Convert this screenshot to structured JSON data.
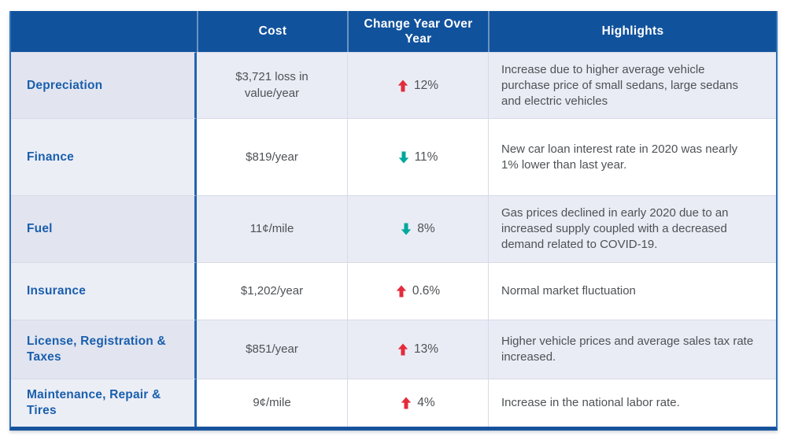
{
  "title": "Vehicle ownership cost comparison table",
  "colors": {
    "header_bg": "#11529c",
    "header_text": "#ffffff",
    "label_text": "#1a5fad",
    "body_text": "#4f5154",
    "up_arrow": "#e32b3c",
    "down_arrow": "#00a79c",
    "stripe": "#e9ecf5",
    "label_stripe_light": "#eceef6",
    "label_stripe_dark": "#e2e5f0",
    "grid_line": "#d7dbe7",
    "divider_blue": "#2264ae",
    "outer_border": "#3273ba",
    "bottom_border": "#17539d"
  },
  "chart_data": {
    "type": "table",
    "columns": [
      "",
      "Cost",
      "Change Year\nOver Year",
      "Highlights"
    ],
    "rows": [
      {
        "category": "Depreciation",
        "cost": "$3,721 loss in value/year",
        "change_direction": "up",
        "change_percent": "12%",
        "highlight": "Increase due to higher average vehicle purchase price of small sedans, large sedans and electric vehicles"
      },
      {
        "category": "Finance",
        "cost": "$819/year",
        "change_direction": "down",
        "change_percent": "11%",
        "highlight": "New car loan interest rate in 2020 was nearly 1% lower than last year."
      },
      {
        "category": "Fuel",
        "cost": "11¢/mile",
        "change_direction": "down",
        "change_percent": "8%",
        "highlight": "Gas prices declined in early 2020 due to an increased supply coupled with a decreased demand related to COVID-19."
      },
      {
        "category": "Insurance",
        "cost": "$1,202/year",
        "change_direction": "up",
        "change_percent": "0.6%",
        "highlight": "Normal market fluctuation"
      },
      {
        "category": "License, Registration & Taxes",
        "cost": "$851/year",
        "change_direction": "up",
        "change_percent": "13%",
        "highlight": "Higher vehicle prices and average sales tax rate increased."
      },
      {
        "category": "Maintenance, Repair & Tires",
        "cost": "9¢/mile",
        "change_direction": "up",
        "change_percent": "4%",
        "highlight": "Increase in the national labor rate."
      }
    ]
  }
}
